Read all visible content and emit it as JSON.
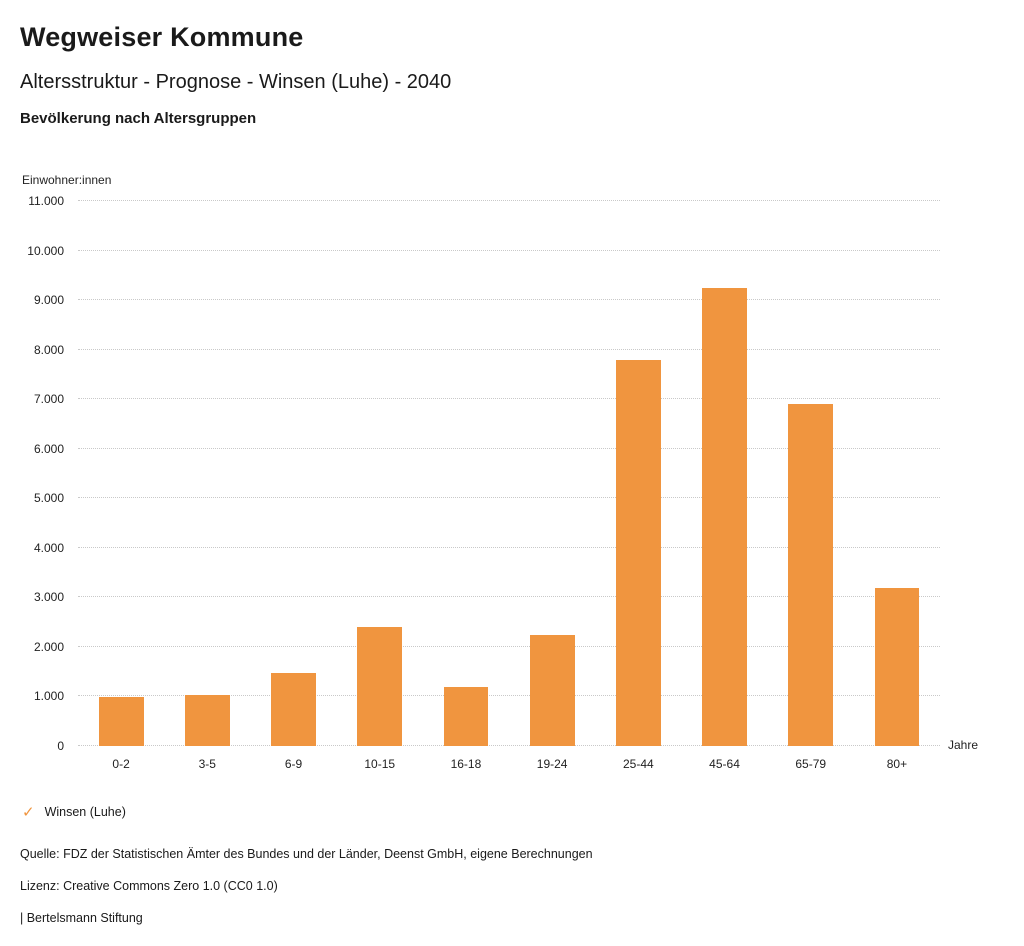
{
  "header": {
    "title": "Wegweiser Kommune",
    "subtitle": "Altersstruktur - Prognose - Winsen (Luhe) - 2040",
    "chart_heading": "Bevölkerung nach Altersgruppen"
  },
  "chart_data": {
    "type": "bar",
    "title": "Bevölkerung nach Altersgruppen",
    "categories": [
      "0-2",
      "3-5",
      "6-9",
      "10-15",
      "16-18",
      "19-24",
      "25-44",
      "45-64",
      "65-79",
      "80+"
    ],
    "values": [
      980,
      1030,
      1470,
      2400,
      1200,
      2250,
      7800,
      9250,
      6900,
      3180
    ],
    "ylabel": "Einwohner:innen",
    "xlabel": "Jahre",
    "ylim": [
      0,
      11000
    ],
    "ytick_step": 1000,
    "bar_color": "#F0953F",
    "grid": "horizontal-dotted",
    "legend_position": "bottom-left"
  },
  "legend": {
    "items": [
      {
        "label": "Winsen (Luhe)",
        "color": "#F0953F",
        "check_icon": "✓"
      }
    ]
  },
  "footer": {
    "source": "Quelle: FDZ der Statistischen Ämter des Bundes und der Länder, Deenst GmbH, eigene Berechnungen",
    "license": "Lizenz: Creative Commons Zero 1.0 (CC0 1.0)",
    "attribution": "| Bertelsmann Stiftung"
  }
}
